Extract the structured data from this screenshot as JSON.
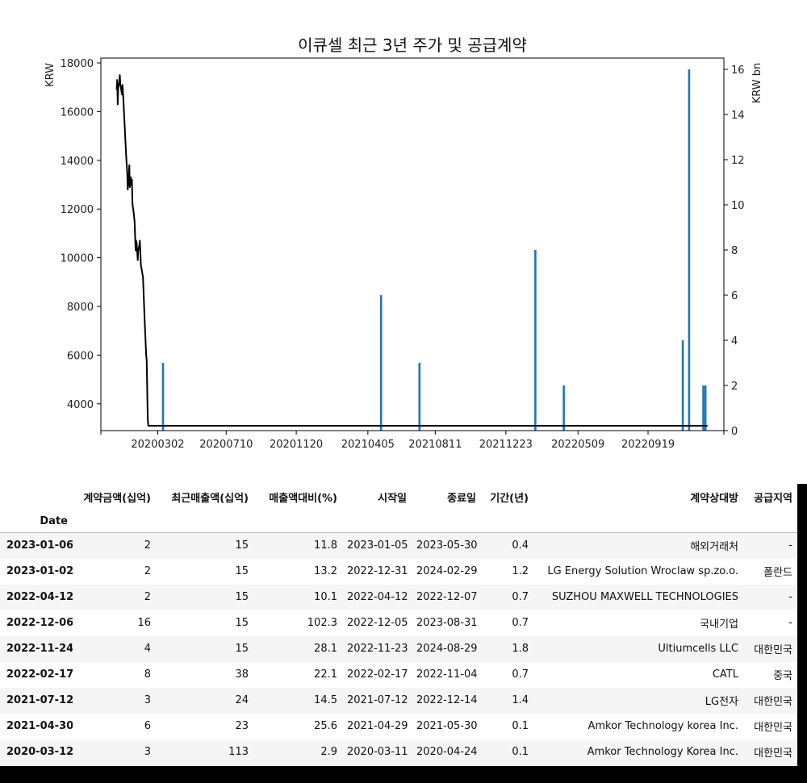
{
  "chart_data": {
    "type": "line+bar",
    "title": "이큐셀 최근 3년 주가 및 공급계약",
    "ylabel_left": "KRW",
    "ylabel_right": "KRW bn",
    "x_tick_labels": [
      "20200302",
      "20200710",
      "20201120",
      "20210405",
      "20210811",
      "20211223",
      "20220509",
      "20220919"
    ],
    "x_ticks": [
      "2020-03-02",
      "2020-07-10",
      "2020-11-20",
      "2021-04-05",
      "2021-08-11",
      "2021-12-23",
      "2022-05-09",
      "2022-09-19"
    ],
    "x_range": [
      "2019-11-15",
      "2023-02-10"
    ],
    "ylim_left": [
      2900,
      18200
    ],
    "ylim_right": [
      0,
      16.5
    ],
    "y_ticks_left": [
      4000,
      6000,
      8000,
      10000,
      12000,
      14000,
      16000,
      18000
    ],
    "y_ticks_right": [
      0,
      2,
      4,
      6,
      8,
      10,
      12,
      14,
      16
    ],
    "grid": false,
    "series": [
      {
        "kind": "line",
        "color": "#000000",
        "points": [
          [
            "2019-12-15",
            16900
          ],
          [
            "2019-12-16",
            17300
          ],
          [
            "2019-12-17",
            16300
          ],
          [
            "2019-12-18",
            17000
          ],
          [
            "2019-12-20",
            17200
          ],
          [
            "2019-12-21",
            17500
          ],
          [
            "2019-12-22",
            17100
          ],
          [
            "2019-12-23",
            17000
          ],
          [
            "2019-12-25",
            16700
          ],
          [
            "2019-12-26",
            17100
          ],
          [
            "2019-12-27",
            16800
          ],
          [
            "2019-12-30",
            15500
          ],
          [
            "2020-01-02",
            14200
          ],
          [
            "2020-01-04",
            13500
          ],
          [
            "2020-01-05",
            12800
          ],
          [
            "2020-01-07",
            13300
          ],
          [
            "2020-01-08",
            13800
          ],
          [
            "2020-01-09",
            12900
          ],
          [
            "2020-01-11",
            13300
          ],
          [
            "2020-01-12",
            13000
          ],
          [
            "2020-01-13",
            13200
          ],
          [
            "2020-01-14",
            12200
          ],
          [
            "2020-01-16",
            11900
          ],
          [
            "2020-01-18",
            11500
          ],
          [
            "2020-01-20",
            10300
          ],
          [
            "2020-01-21",
            10700
          ],
          [
            "2020-01-22",
            10600
          ],
          [
            "2020-01-24",
            9900
          ],
          [
            "2020-01-25",
            10300
          ],
          [
            "2020-01-27",
            10500
          ],
          [
            "2020-01-28",
            10700
          ],
          [
            "2020-01-30",
            9700
          ],
          [
            "2020-02-03",
            9200
          ],
          [
            "2020-02-06",
            7500
          ],
          [
            "2020-02-09",
            6000
          ],
          [
            "2020-02-10",
            5800
          ],
          [
            "2020-02-12",
            3400
          ],
          [
            "2020-02-13",
            3100
          ],
          [
            "2023-01-10",
            3100
          ]
        ]
      },
      {
        "kind": "bar",
        "color": "#1f77b4",
        "axis": "right",
        "points": [
          [
            "2020-03-12",
            3
          ],
          [
            "2021-04-30",
            6
          ],
          [
            "2021-07-12",
            3
          ],
          [
            "2022-02-17",
            8
          ],
          [
            "2022-04-12",
            2
          ],
          [
            "2022-11-24",
            4
          ],
          [
            "2022-12-06",
            16
          ],
          [
            "2023-01-02",
            2
          ],
          [
            "2023-01-06",
            2
          ]
        ]
      }
    ]
  },
  "table": {
    "columns": [
      "계약금액(십억)",
      "최근매출액(십억)",
      "매출액대비(%)",
      "시작일",
      "종료일",
      "기간(년)",
      "계약상대방",
      "공급지역"
    ],
    "index_name": "Date",
    "rows": [
      {
        "date": "2023-01-06",
        "cells": [
          "2",
          "15",
          "11.8",
          "2023-01-05",
          "2023-05-30",
          "0.4",
          "해외거래처",
          "-"
        ]
      },
      {
        "date": "2023-01-02",
        "cells": [
          "2",
          "15",
          "13.2",
          "2022-12-31",
          "2024-02-29",
          "1.2",
          "LG Energy Solution Wroclaw sp.zo.o.",
          "폴란드"
        ]
      },
      {
        "date": "2022-04-12",
        "cells": [
          "2",
          "15",
          "10.1",
          "2022-04-12",
          "2022-12-07",
          "0.7",
          "SUZHOU MAXWELL TECHNOLOGIES",
          "-"
        ]
      },
      {
        "date": "2022-12-06",
        "cells": [
          "16",
          "15",
          "102.3",
          "2022-12-05",
          "2023-08-31",
          "0.7",
          "국내기업",
          "-"
        ]
      },
      {
        "date": "2022-11-24",
        "cells": [
          "4",
          "15",
          "28.1",
          "2022-11-23",
          "2024-08-29",
          "1.8",
          "Ultiumcells LLC",
          "대한민국"
        ]
      },
      {
        "date": "2022-02-17",
        "cells": [
          "8",
          "38",
          "22.1",
          "2022-02-17",
          "2022-11-04",
          "0.7",
          "CATL",
          "중국"
        ]
      },
      {
        "date": "2021-07-12",
        "cells": [
          "3",
          "24",
          "14.5",
          "2021-07-12",
          "2022-12-14",
          "1.4",
          "LG전자",
          "대한민국"
        ]
      },
      {
        "date": "2021-04-30",
        "cells": [
          "6",
          "23",
          "25.6",
          "2021-04-29",
          "2021-05-30",
          "0.1",
          "Amkor Technology korea Inc.",
          "대한민국"
        ]
      },
      {
        "date": "2020-03-12",
        "cells": [
          "3",
          "113",
          "2.9",
          "2020-03-11",
          "2020-04-24",
          "0.1",
          "Amkor Technology Korea Inc.",
          "대한민국"
        ]
      }
    ]
  }
}
